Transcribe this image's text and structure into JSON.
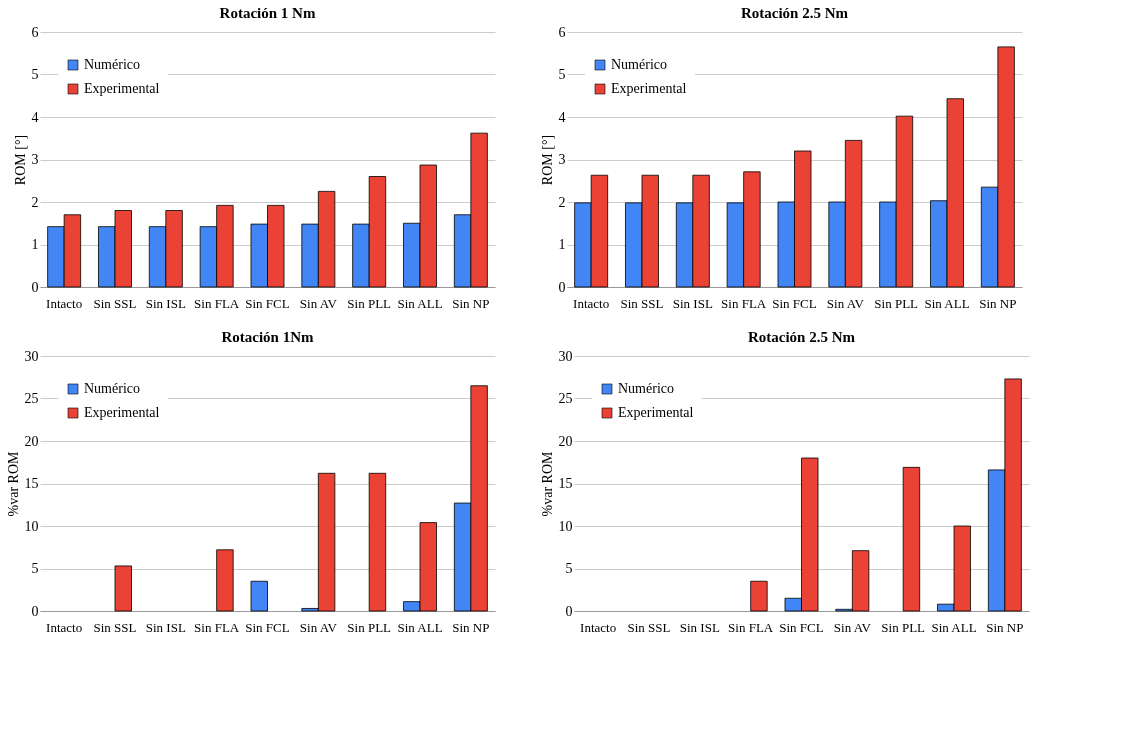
{
  "chart_data": [
    {
      "type": "bar",
      "title": "Rotación 1 Nm",
      "ylabel": "ROM [°]",
      "categories": [
        "Intacto",
        "Sin SSL",
        "Sin ISL",
        "Sin FLA",
        "Sin FCL",
        "Sin AV",
        "Sin PLL",
        "Sin ALL",
        "Sin NP"
      ],
      "ylim": [
        0,
        6
      ],
      "yticks": [
        0,
        1,
        2,
        3,
        4,
        5,
        6
      ],
      "grid": "y",
      "legend": "top left",
      "series": [
        {
          "name": "Numérico",
          "color": "#4285f4",
          "values": [
            1.42,
            1.42,
            1.42,
            1.42,
            1.48,
            1.48,
            1.48,
            1.5,
            1.7
          ]
        },
        {
          "name": "Experimental",
          "color": "#ea4335",
          "values": [
            1.7,
            1.8,
            1.8,
            1.92,
            1.92,
            2.25,
            2.6,
            2.87,
            3.62
          ]
        }
      ]
    },
    {
      "type": "bar",
      "title": "Rotación 2.5 Nm",
      "ylabel": "ROM [°]",
      "categories": [
        "Intacto",
        "Sin SSL",
        "Sin ISL",
        "Sin FLA",
        "Sin FCL",
        "Sin AV",
        "Sin PLL",
        "Sin ALL",
        "Sin NP"
      ],
      "ylim": [
        0,
        6
      ],
      "yticks": [
        0,
        1,
        2,
        3,
        4,
        5,
        6
      ],
      "grid": "y",
      "legend": "top left",
      "series": [
        {
          "name": "Numérico",
          "color": "#4285f4",
          "values": [
            1.98,
            1.98,
            1.98,
            1.98,
            2.0,
            2.0,
            2.0,
            2.03,
            2.35
          ]
        },
        {
          "name": "Experimental",
          "color": "#ea4335",
          "values": [
            2.63,
            2.63,
            2.63,
            2.71,
            3.2,
            3.45,
            4.02,
            4.43,
            5.65
          ]
        }
      ]
    },
    {
      "type": "bar",
      "title": "Rotación  1Nm",
      "ylabel": "%var ROM",
      "categories": [
        "Intacto",
        "Sin SSL",
        "Sin ISL",
        "Sin FLA",
        "Sin FCL",
        "Sin AV",
        "Sin PLL",
        "Sin ALL",
        "Sin NP"
      ],
      "ylim": [
        0,
        30
      ],
      "yticks": [
        0,
        5,
        10,
        15,
        20,
        25,
        30
      ],
      "grid": "y",
      "legend": "top left",
      "series": [
        {
          "name": "Numérico",
          "color": "#4285f4",
          "values": [
            0,
            0,
            0,
            0,
            3.5,
            0.3,
            0,
            1.1,
            12.7
          ]
        },
        {
          "name": "Experimental",
          "color": "#ea4335",
          "values": [
            0,
            5.3,
            0,
            7.2,
            0,
            16.2,
            16.2,
            10.4,
            26.5
          ]
        }
      ]
    },
    {
      "type": "bar",
      "title": "Rotación 2.5 Nm",
      "ylabel": "%var ROM",
      "categories": [
        "Intacto",
        "Sin SSL",
        "Sin ISL",
        "Sin FLA",
        "Sin FCL",
        "Sin AV",
        "Sin PLL",
        "Sin ALL",
        "Sin NP"
      ],
      "ylim": [
        0,
        30
      ],
      "yticks": [
        0,
        5,
        10,
        15,
        20,
        25,
        30
      ],
      "grid": "y",
      "legend": "top left",
      "series": [
        {
          "name": "Numérico",
          "color": "#4285f4",
          "values": [
            0,
            0,
            0,
            0,
            1.5,
            0.2,
            0,
            0.8,
            16.6
          ]
        },
        {
          "name": "Experimental",
          "color": "#ea4335",
          "values": [
            0,
            0,
            0,
            3.5,
            18,
            7.1,
            16.9,
            10,
            27.3
          ]
        }
      ]
    }
  ]
}
